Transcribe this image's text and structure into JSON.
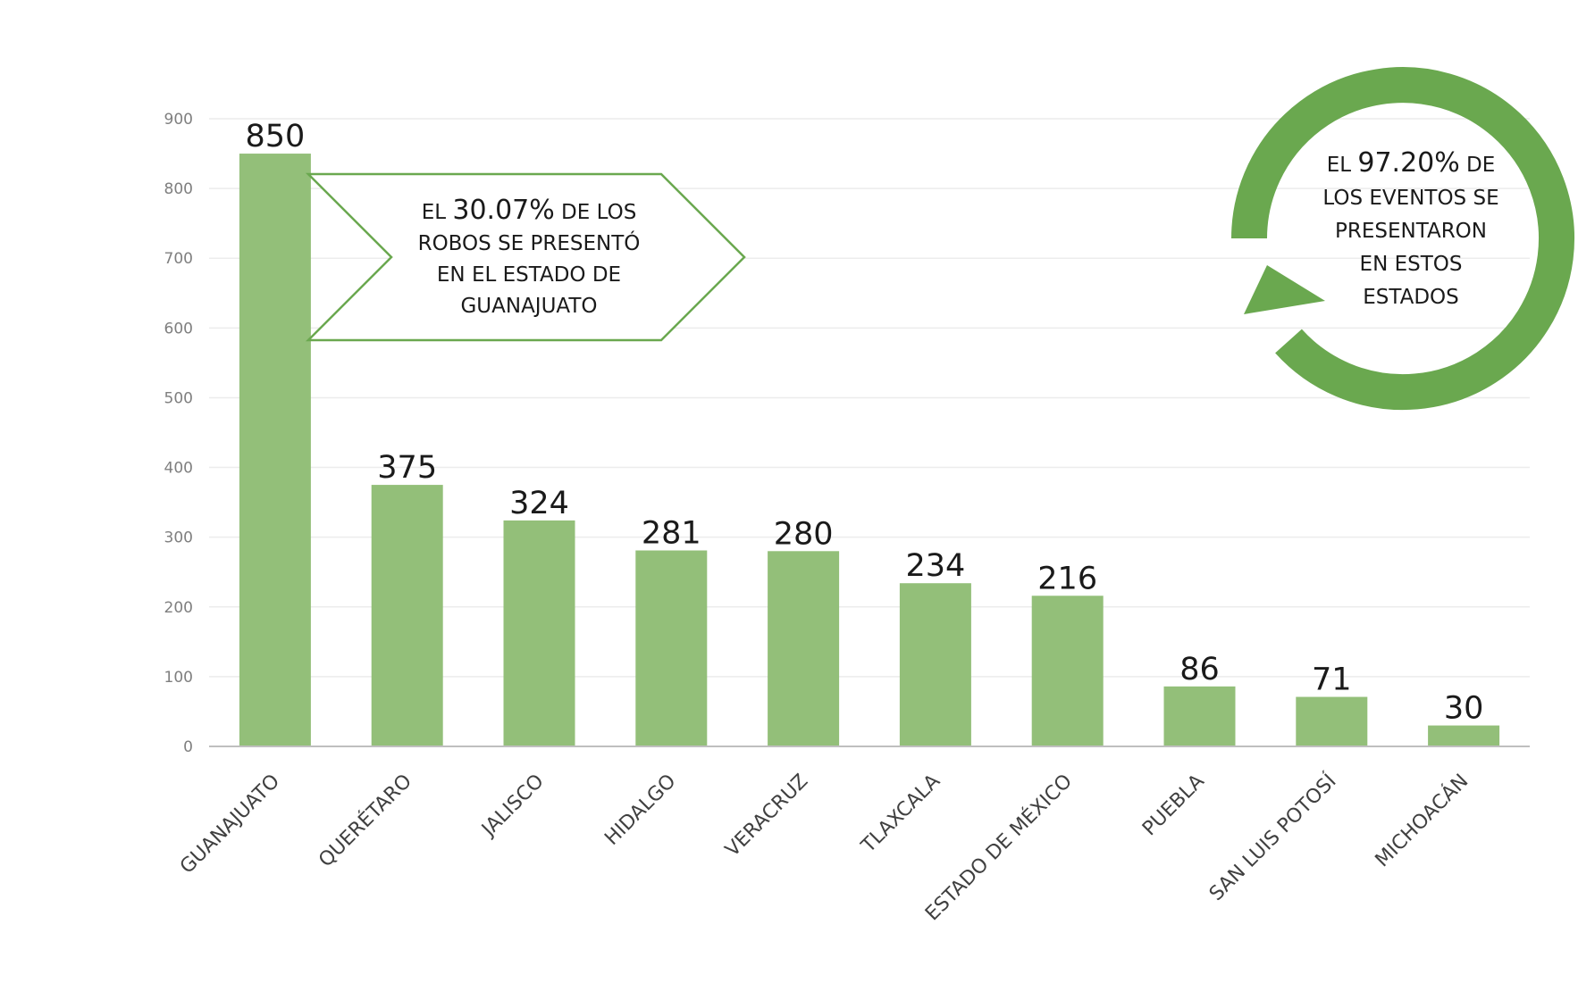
{
  "chart_data": {
    "type": "bar",
    "title": "",
    "xlabel": "",
    "ylabel": "",
    "categories": [
      "GUANAJUATO",
      "QUERÉTARO",
      "JALISCO",
      "HIDALGO",
      "VERACRUZ",
      "TLAXCALA",
      "ESTADO DE MÉXICO",
      "PUEBLA",
      "SAN LUIS POTOSÍ",
      "MICHOACÁN"
    ],
    "values": [
      850,
      375,
      324,
      281,
      280,
      234,
      216,
      86,
      71,
      30
    ],
    "ylim": [
      0,
      900
    ],
    "yticks": [
      0,
      100,
      200,
      300,
      400,
      500,
      600,
      700,
      800,
      900
    ],
    "grid": true,
    "bar_color": "#93bf79",
    "accent_color": "#6aa84f",
    "data_labels": true
  },
  "callouts": {
    "guanajuato": {
      "lines": [
        {
          "parts": [
            {
              "text": "EL "
            },
            {
              "text": "30.07%",
              "strong": true
            },
            {
              "text": " DE LOS"
            }
          ]
        },
        {
          "parts": [
            {
              "text": "ROBOS SE PRESENTÓ"
            }
          ]
        },
        {
          "parts": [
            {
              "text": "EN EL ESTADO DE"
            }
          ]
        },
        {
          "parts": [
            {
              "text": "GUANAJUATO"
            }
          ]
        }
      ]
    },
    "total": {
      "lines": [
        {
          "parts": [
            {
              "text": "EL "
            },
            {
              "text": "97.20%",
              "strong": true
            },
            {
              "text": " DE"
            }
          ]
        },
        {
          "parts": [
            {
              "text": "LOS EVENTOS SE"
            }
          ]
        },
        {
          "parts": [
            {
              "text": "PRESENTARON"
            }
          ]
        },
        {
          "parts": [
            {
              "text": "EN ESTOS"
            }
          ]
        },
        {
          "parts": [
            {
              "text": "ESTADOS"
            }
          ]
        }
      ]
    }
  }
}
